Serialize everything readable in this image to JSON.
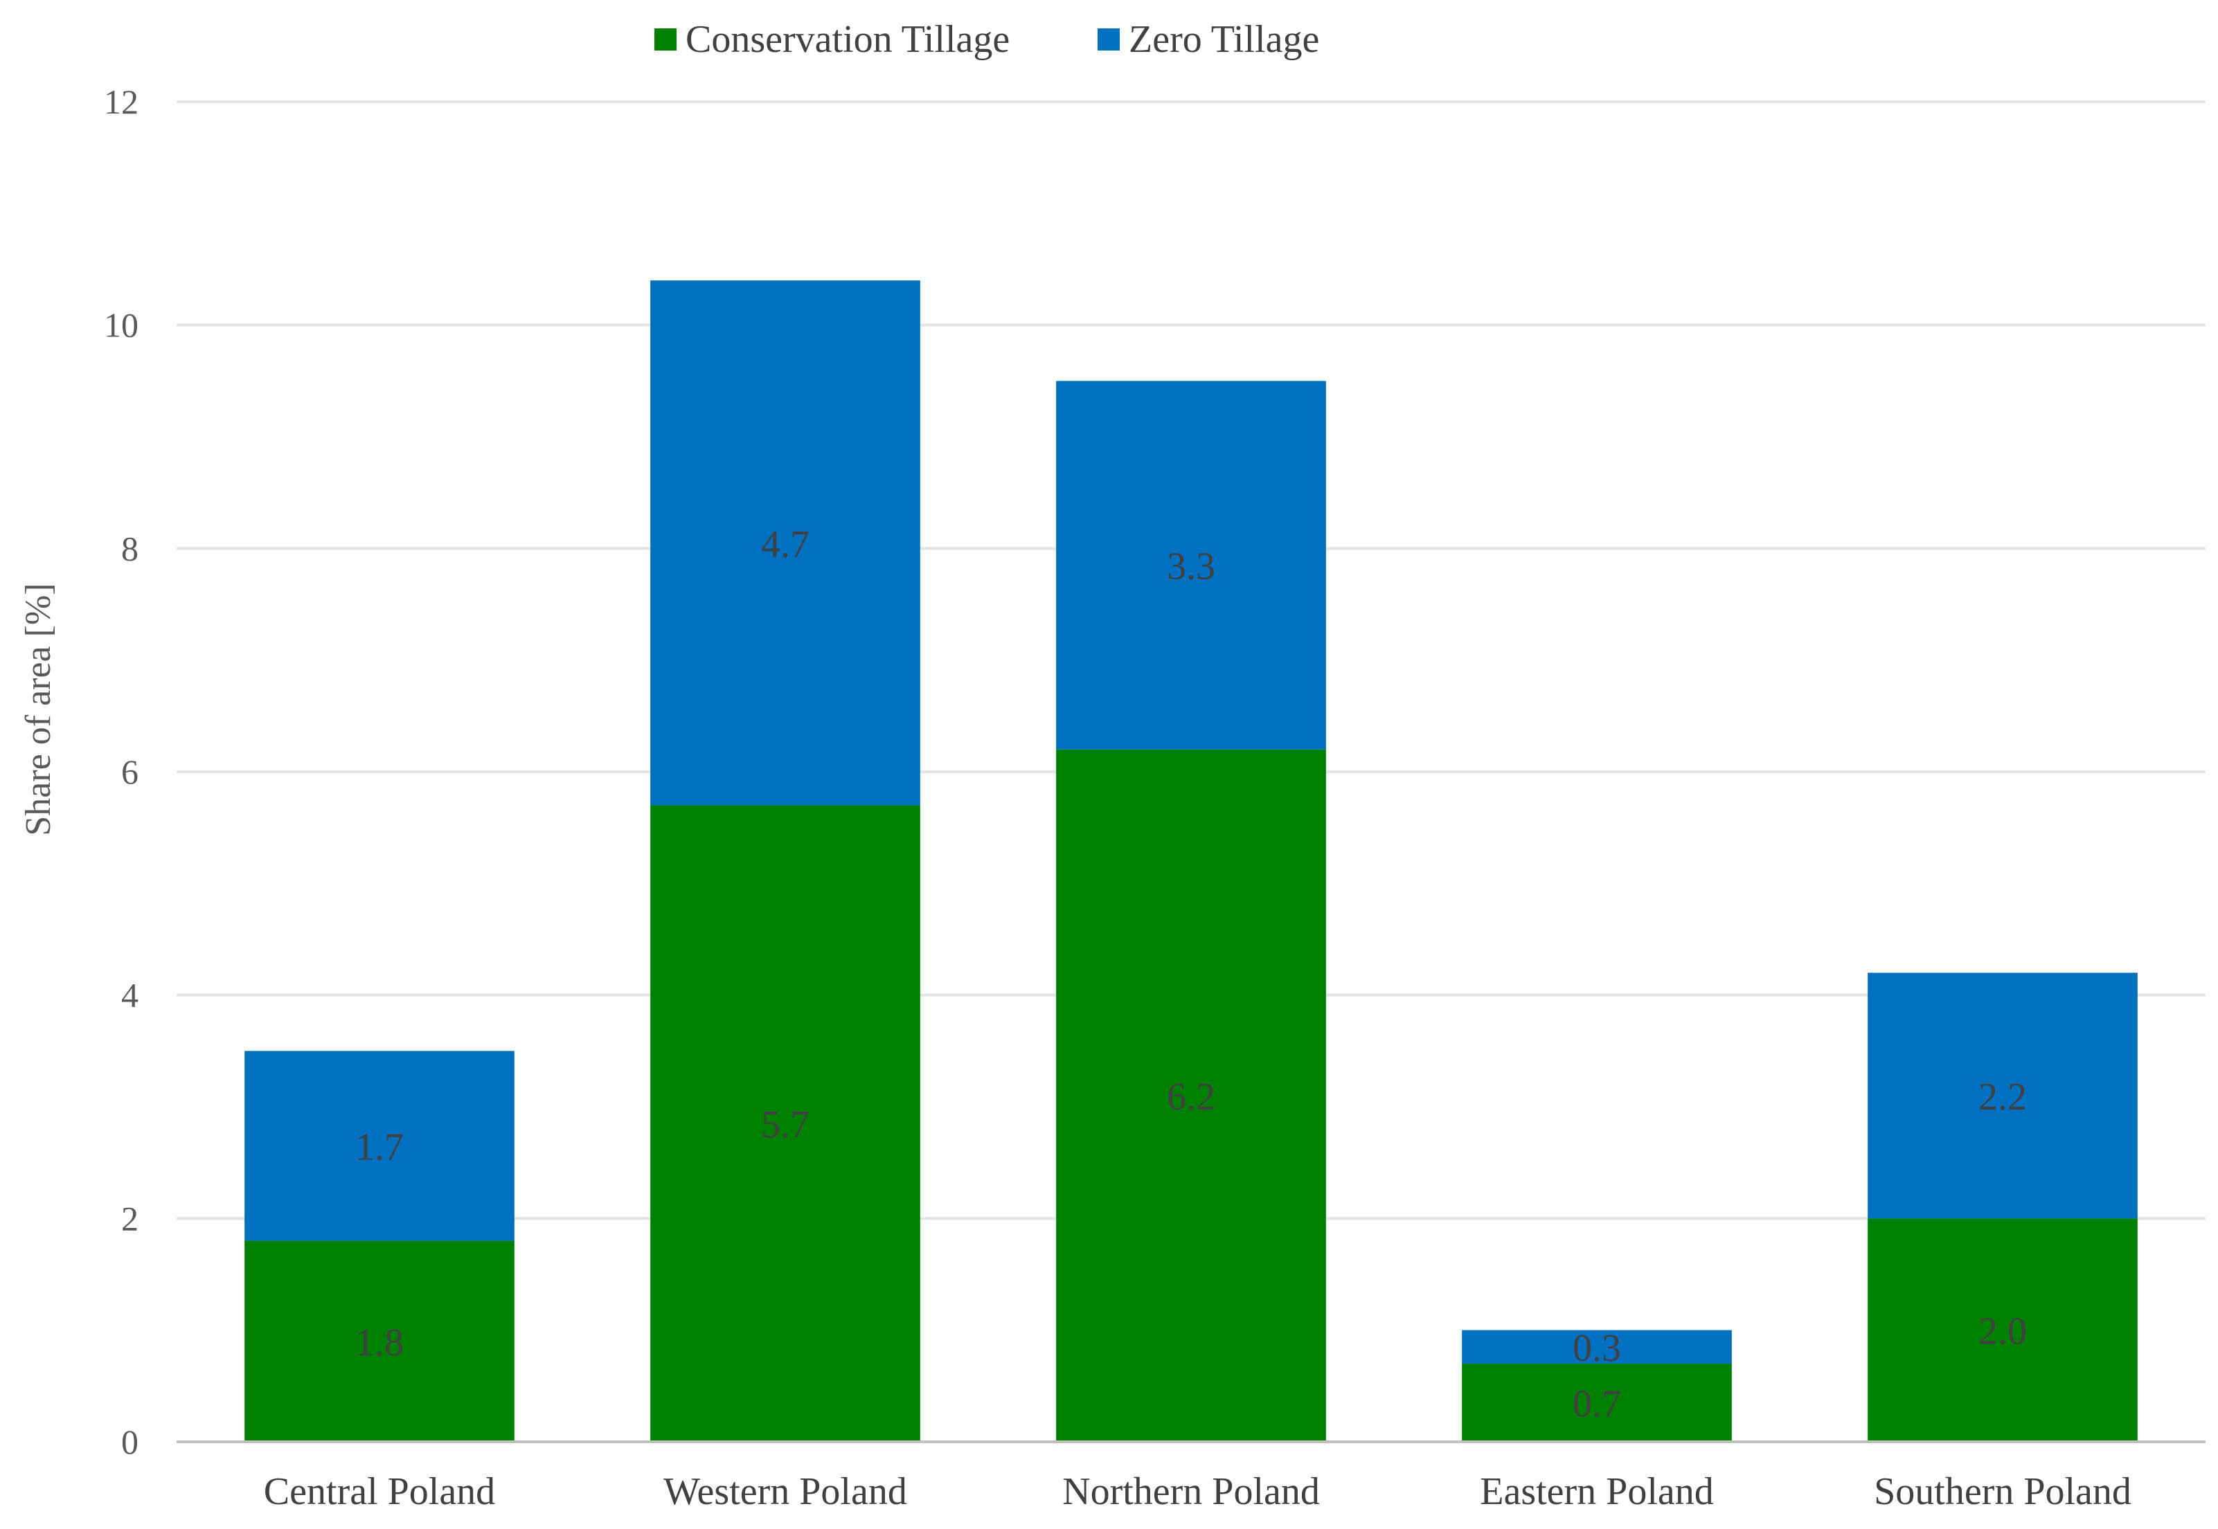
{
  "chart_data": {
    "type": "bar",
    "stacked": true,
    "title": "",
    "xlabel": "",
    "ylabel": "Share  of area [%]",
    "ylim": [
      0,
      12
    ],
    "yticks": [
      0,
      2,
      4,
      6,
      8,
      10,
      12
    ],
    "grid": true,
    "legend_position": "top-center",
    "categories": [
      "Central Poland",
      "Western Poland",
      "Northern Poland",
      "Eastern Poland",
      "Southern Poland"
    ],
    "series": [
      {
        "name": "Conservation Tillage",
        "color": "#008000",
        "values": [
          1.8,
          5.7,
          6.2,
          0.7,
          2.0
        ],
        "labels": [
          "1.8",
          "5.7",
          "6.2",
          "0.7",
          "2.0"
        ]
      },
      {
        "name": "Zero Tillage",
        "color": "#0070C0",
        "values": [
          1.7,
          4.7,
          3.3,
          0.3,
          2.2
        ],
        "labels": [
          "1.7",
          "4.7",
          "3.3",
          "0.3",
          "2.2"
        ]
      }
    ]
  }
}
